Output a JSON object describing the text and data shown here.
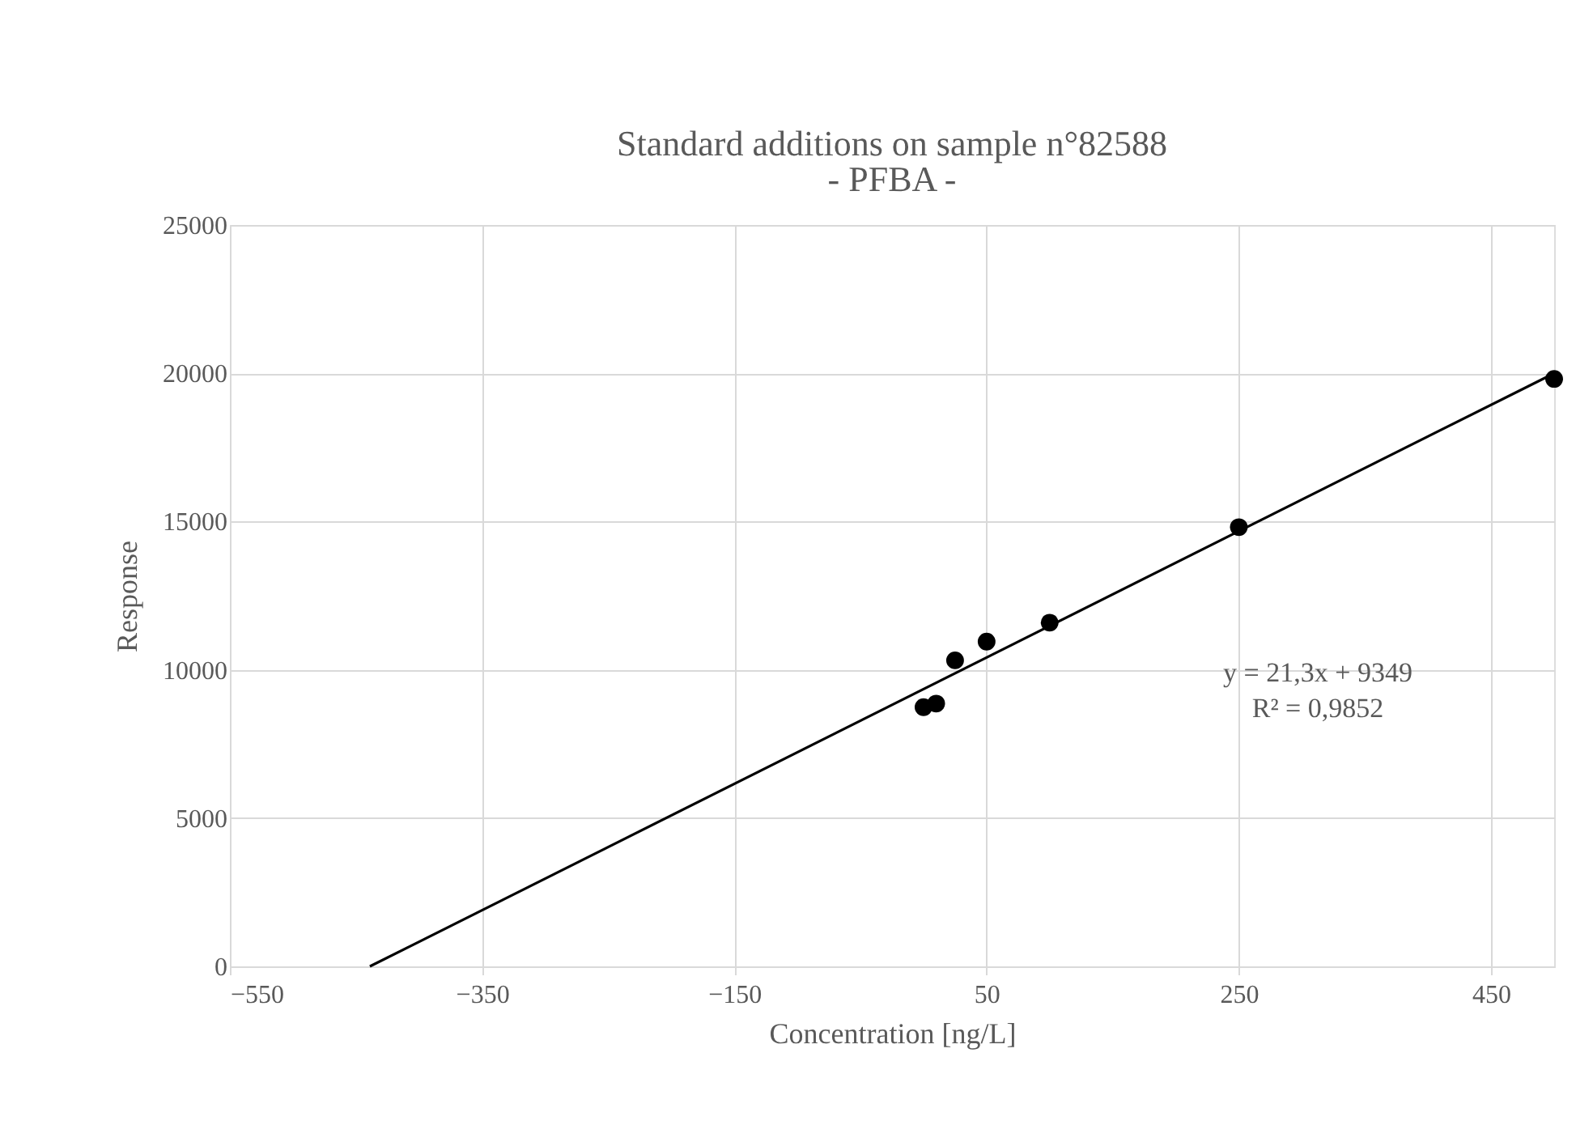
{
  "chart_data": {
    "type": "scatter",
    "title": "Standard additions on sample n°82588",
    "subtitle": "- PFBA -",
    "xlabel": "Concentration [ng/L]",
    "ylabel": "Response",
    "xlim": [
      -550,
      500
    ],
    "xticks": [
      -550,
      -350,
      -150,
      50,
      250,
      450
    ],
    "ylim": [
      0,
      25000
    ],
    "yticks": [
      0,
      5000,
      10000,
      15000,
      20000,
      25000
    ],
    "grid": true,
    "series": [
      {
        "marker": "circle",
        "color": "#000000",
        "x": [
          0,
          10,
          25,
          50,
          100,
          250,
          500
        ],
        "values": [
          8740,
          8860,
          10320,
          10950,
          11590,
          14810,
          19810
        ]
      },
      {
        "type": "line",
        "marker": "none",
        "color": "#000000",
        "x": [
          -439,
          500
        ],
        "values": [
          0,
          20000
        ],
        "line_style": "solid"
      }
    ],
    "annotations": [
      "y = 21,3x + 9349",
      "R² = 0,9852"
    ]
  }
}
